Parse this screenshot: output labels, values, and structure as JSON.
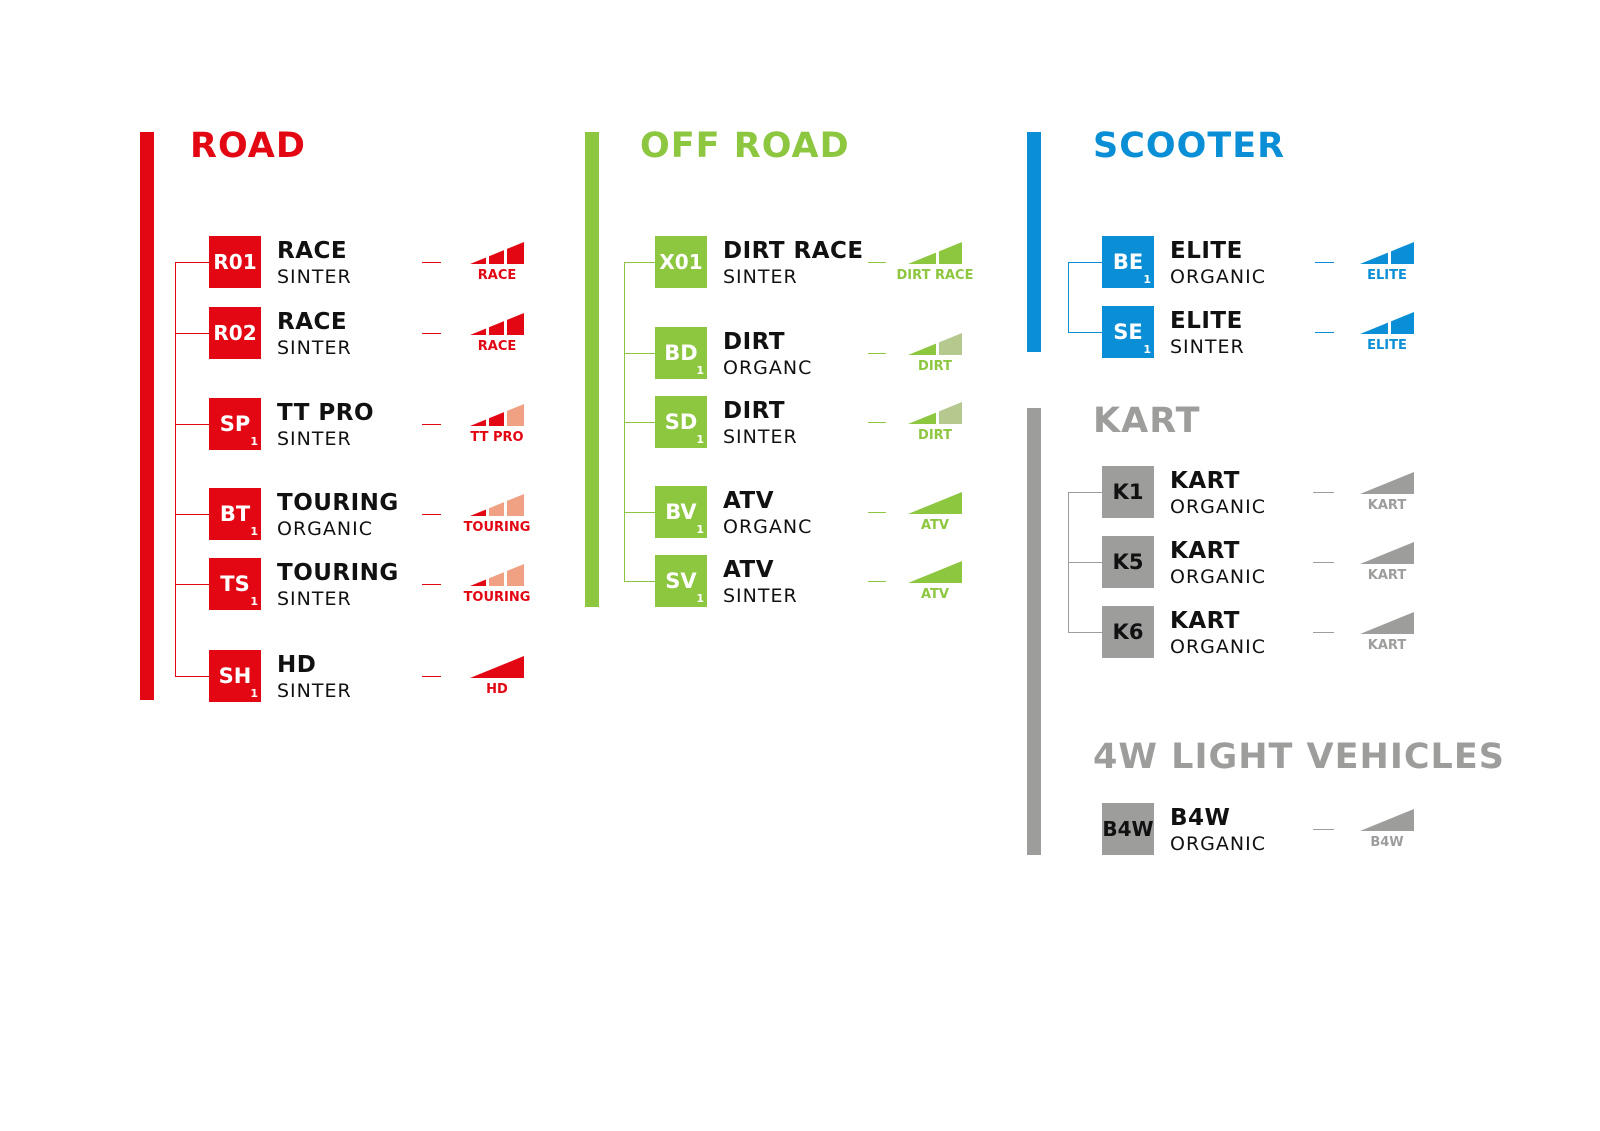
{
  "colors": {
    "road": "#e30613",
    "road_light": "#f0a083",
    "offroad": "#8dc63f",
    "offroad_light": "#b5c98f",
    "scooter": "#0a8fd6",
    "kart": "#9d9d9c"
  },
  "sections": [
    {
      "id": "road",
      "title": "ROAD",
      "color": "#e30613",
      "items": [
        {
          "code": "R01",
          "sub": "",
          "name": "RACE",
          "material": "SINTER",
          "icon": {
            "type": "steps3",
            "filled": 3
          },
          "label": "RACE"
        },
        {
          "code": "R02",
          "sub": "",
          "name": "RACE",
          "material": "SINTER",
          "icon": {
            "type": "steps3",
            "filled": 3
          },
          "label": "RACE"
        },
        {
          "code": "SP",
          "sub": "1",
          "name": "TT PRO",
          "material": "SINTER",
          "icon": {
            "type": "steps3",
            "filled": 2
          },
          "label": "TT PRO"
        },
        {
          "code": "BT",
          "sub": "1",
          "name": "TOURING",
          "material": "ORGANIC",
          "icon": {
            "type": "steps3",
            "filled": 1
          },
          "label": "TOURING"
        },
        {
          "code": "TS",
          "sub": "1",
          "name": "TOURING",
          "material": "SINTER",
          "icon": {
            "type": "steps3",
            "filled": 1
          },
          "label": "TOURING"
        },
        {
          "code": "SH",
          "sub": "1",
          "name": "HD",
          "material": "SINTER",
          "icon": {
            "type": "wedge",
            "filled": 1
          },
          "label": "HD"
        }
      ]
    },
    {
      "id": "offroad",
      "title": "OFF ROAD",
      "color": "#8dc63f",
      "items": [
        {
          "code": "X01",
          "sub": "",
          "name": "DIRT RACE",
          "material": "SINTER",
          "icon": {
            "type": "steps2",
            "filled": 2
          },
          "label": "DIRT RACE"
        },
        {
          "code": "BD",
          "sub": "1",
          "name": "DIRT",
          "material": "ORGANC",
          "icon": {
            "type": "steps2",
            "filled": 1
          },
          "label": "DIRT"
        },
        {
          "code": "SD",
          "sub": "1",
          "name": "DIRT",
          "material": "SINTER",
          "icon": {
            "type": "steps2",
            "filled": 1
          },
          "label": "DIRT"
        },
        {
          "code": "BV",
          "sub": "1",
          "name": "ATV",
          "material": "ORGANC",
          "icon": {
            "type": "wedge",
            "filled": 1
          },
          "label": "ATV"
        },
        {
          "code": "SV",
          "sub": "1",
          "name": "ATV",
          "material": "SINTER",
          "icon": {
            "type": "wedge",
            "filled": 1
          },
          "label": "ATV"
        }
      ]
    },
    {
      "id": "scooter",
      "title": "SCOOTER",
      "color": "#0a8fd6",
      "items": [
        {
          "code": "BE",
          "sub": "1",
          "name": "ELITE",
          "material": "ORGANIC",
          "icon": {
            "type": "steps2",
            "filled": 2
          },
          "label": "ELITE"
        },
        {
          "code": "SE",
          "sub": "1",
          "name": "ELITE",
          "material": "SINTER",
          "icon": {
            "type": "steps2",
            "filled": 2
          },
          "label": "ELITE"
        }
      ]
    },
    {
      "id": "kart",
      "title": "KART",
      "color": "#9d9d9c",
      "items": [
        {
          "code": "K1",
          "sub": "",
          "name": "KART",
          "material": "ORGANIC",
          "icon": {
            "type": "wedge",
            "filled": 1
          },
          "label": "KART"
        },
        {
          "code": "K5",
          "sub": "",
          "name": "KART",
          "material": "ORGANIC",
          "icon": {
            "type": "wedge",
            "filled": 1
          },
          "label": "KART"
        },
        {
          "code": "K6",
          "sub": "",
          "name": "KART",
          "material": "ORGANIC",
          "icon": {
            "type": "wedge",
            "filled": 1
          },
          "label": "KART"
        }
      ]
    },
    {
      "id": "light4w",
      "title": "4W LIGHT VEHICLES",
      "color": "#9d9d9c",
      "items": [
        {
          "code": "B4W",
          "sub": "",
          "name": "B4W",
          "material": "ORGANIC",
          "icon": {
            "type": "wedge",
            "filled": 1
          },
          "label": "B4W"
        }
      ]
    }
  ]
}
